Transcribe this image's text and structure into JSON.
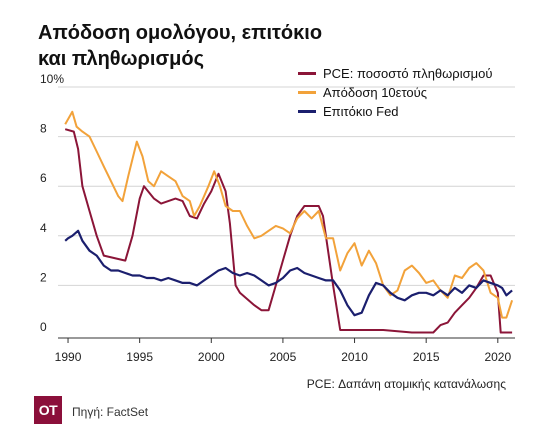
{
  "title_lines": [
    "Απόδοση ομολόγου, επιτόκιο",
    "και πληθωρισμός"
  ],
  "note": "PCE: Δαπάνη ατομικής κατανάλωσης",
  "source": "Πηγή: FactSet",
  "logo": "ΟΤ",
  "chart_data": {
    "type": "line",
    "title": "Απόδοση ομολόγου, επιτόκιο και πληθωρισμός",
    "xlim": [
      1989.3,
      2021.2
    ],
    "ylim": [
      0,
      10
    ],
    "x_ticks": [
      "1990",
      "1995",
      "2000",
      "2005",
      "2010",
      "2015",
      "2020"
    ],
    "y_ticks": [
      "0",
      "2",
      "4",
      "6",
      "8",
      "10%"
    ],
    "grid": true,
    "legend_position": "top-right",
    "series": [
      {
        "name": "PCE: ποσοστό πληθωρισμού",
        "color": "#8b1538",
        "x": [
          1989.8,
          1990.4,
          1990.7,
          1991.0,
          1991.5,
          1992.0,
          1992.5,
          1994.0,
          1994.5,
          1995.0,
          1995.3,
          1996.0,
          1996.5,
          1997.0,
          1997.5,
          1998.0,
          1998.5,
          1999.0,
          1999.5,
          2000.0,
          2000.5,
          2001.0,
          2001.3,
          2001.7,
          2002.0,
          2003.0,
          2003.5,
          2004.0,
          2004.5,
          2005.0,
          2005.5,
          2006.0,
          2006.5,
          2007.0,
          2007.5,
          2007.8,
          2008.0,
          2008.5,
          2009.0,
          2010.0,
          2012.0,
          2014.0,
          2015.5,
          2016.0,
          2016.5,
          2017.0,
          2017.5,
          2018.0,
          2018.5,
          2019.0,
          2019.5,
          2020.0,
          2020.2,
          2021.0
        ],
        "values": [
          8.3,
          8.2,
          7.5,
          6.0,
          5.0,
          4.0,
          3.2,
          3.0,
          4.0,
          5.5,
          6.0,
          5.5,
          5.3,
          5.4,
          5.5,
          5.4,
          4.8,
          4.7,
          5.3,
          5.8,
          6.5,
          5.8,
          4.5,
          2.0,
          1.7,
          1.2,
          1.0,
          1.0,
          2.0,
          3.0,
          4.0,
          4.8,
          5.2,
          5.2,
          5.2,
          4.8,
          4.0,
          2.0,
          0.2,
          0.2,
          0.2,
          0.1,
          0.1,
          0.4,
          0.5,
          0.9,
          1.2,
          1.5,
          1.9,
          2.4,
          2.4,
          1.7,
          0.1,
          0.1
        ]
      },
      {
        "name": "Απόδοση 10ετούς",
        "color": "#f2a23a",
        "x": [
          1989.8,
          1990.3,
          1990.6,
          1991.0,
          1991.5,
          1992.0,
          1992.5,
          1993.0,
          1993.5,
          1993.8,
          1994.2,
          1994.8,
          1995.2,
          1995.6,
          1996.0,
          1996.5,
          1997.0,
          1997.5,
          1998.0,
          1998.5,
          1998.8,
          1999.2,
          1999.8,
          2000.2,
          2000.6,
          2001.0,
          2001.5,
          2002.0,
          2002.5,
          2003.0,
          2003.5,
          2004.0,
          2004.5,
          2005.0,
          2005.5,
          2006.0,
          2006.5,
          2007.0,
          2007.5,
          2008.0,
          2008.5,
          2009.0,
          2009.5,
          2010.0,
          2010.5,
          2011.0,
          2011.5,
          2012.0,
          2012.5,
          2013.0,
          2013.5,
          2014.0,
          2014.5,
          2015.0,
          2015.5,
          2016.0,
          2016.5,
          2017.0,
          2017.5,
          2018.0,
          2018.5,
          2019.0,
          2019.5,
          2020.0,
          2020.3,
          2020.6,
          2021.0
        ],
        "values": [
          8.5,
          9.0,
          8.4,
          8.2,
          8.0,
          7.4,
          6.8,
          6.2,
          5.6,
          5.4,
          6.4,
          7.8,
          7.2,
          6.2,
          6.0,
          6.6,
          6.4,
          6.2,
          5.6,
          5.4,
          4.8,
          5.2,
          6.0,
          6.6,
          6.0,
          5.2,
          5.0,
          5.0,
          4.4,
          3.9,
          4.0,
          4.2,
          4.4,
          4.3,
          4.1,
          4.7,
          5.0,
          4.7,
          5.0,
          3.9,
          3.9,
          2.6,
          3.3,
          3.7,
          2.8,
          3.4,
          2.9,
          2.0,
          1.6,
          1.8,
          2.6,
          2.8,
          2.5,
          2.1,
          2.2,
          1.8,
          1.5,
          2.4,
          2.3,
          2.7,
          2.9,
          2.6,
          1.7,
          1.5,
          0.7,
          0.7,
          1.4
        ]
      },
      {
        "name": "Επιτόκιο Fed",
        "color": "#1b1f6e",
        "x": [
          1989.8,
          1990.0,
          1990.3,
          1990.7,
          1991.0,
          1991.5,
          1992.0,
          1992.5,
          1993.0,
          1993.5,
          1994.0,
          1994.5,
          1995.0,
          1995.5,
          1996.0,
          1996.5,
          1997.0,
          1997.5,
          1998.0,
          1998.5,
          1999.0,
          1999.5,
          2000.0,
          2000.5,
          2001.0,
          2001.5,
          2002.0,
          2002.5,
          2003.0,
          2003.5,
          2004.0,
          2004.5,
          2005.0,
          2005.5,
          2006.0,
          2006.5,
          2007.0,
          2007.5,
          2008.0,
          2008.5,
          2009.0,
          2009.5,
          2010.0,
          2010.5,
          2011.0,
          2011.5,
          2012.0,
          2012.5,
          2013.0,
          2013.5,
          2014.0,
          2014.5,
          2015.0,
          2015.5,
          2016.0,
          2016.5,
          2017.0,
          2017.5,
          2018.0,
          2018.5,
          2019.0,
          2019.5,
          2020.0,
          2020.3,
          2020.6,
          2021.0
        ],
        "values": [
          3.8,
          3.9,
          4.0,
          4.2,
          3.8,
          3.4,
          3.2,
          2.8,
          2.6,
          2.6,
          2.5,
          2.4,
          2.4,
          2.3,
          2.3,
          2.2,
          2.3,
          2.2,
          2.1,
          2.1,
          2.0,
          2.2,
          2.4,
          2.6,
          2.7,
          2.5,
          2.4,
          2.5,
          2.4,
          2.2,
          2.0,
          2.1,
          2.3,
          2.6,
          2.7,
          2.5,
          2.4,
          2.3,
          2.2,
          2.2,
          1.8,
          1.2,
          0.8,
          0.9,
          1.6,
          2.1,
          2.0,
          1.7,
          1.5,
          1.4,
          1.6,
          1.7,
          1.7,
          1.6,
          1.8,
          1.6,
          1.9,
          1.7,
          2.0,
          1.9,
          2.2,
          2.1,
          2.0,
          1.9,
          1.6,
          1.8
        ]
      }
    ]
  }
}
